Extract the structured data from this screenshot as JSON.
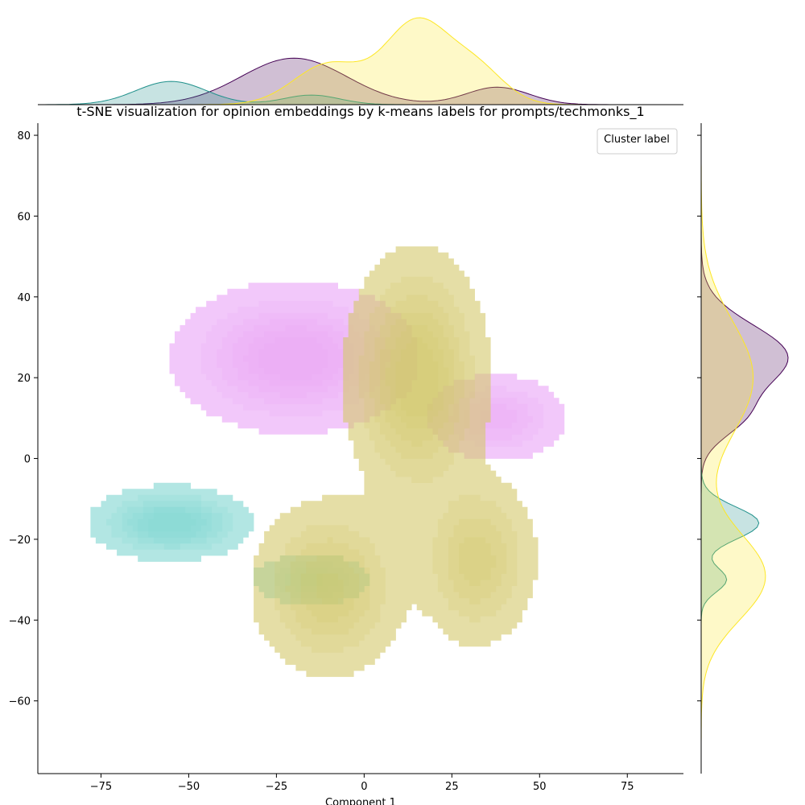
{
  "chart_data": {
    "type": "kde_joint",
    "title": "t-SNE visualization for opinion embeddings by k-means labels for prompts/techmonks_1",
    "xlabel": "Component 1",
    "ylabel": "",
    "xlim": [
      -93,
      91
    ],
    "ylim": [
      -78,
      83
    ],
    "x_ticks": [
      -75,
      -50,
      -25,
      0,
      25,
      50,
      75
    ],
    "y_ticks": [
      -60,
      -40,
      -20,
      0,
      20,
      40,
      60,
      80
    ],
    "x_tick_labels": [
      "−75",
      "−50",
      "−25",
      "0",
      "25",
      "50",
      "75"
    ],
    "y_tick_labels": [
      "−60",
      "−40",
      "−20",
      "0",
      "20",
      "40",
      "60",
      "80"
    ],
    "legend": {
      "title": "Cluster label",
      "placement": "top-right",
      "entries": []
    },
    "grid": false,
    "series": [
      {
        "color": "#e9a3f7",
        "marginal_color": "#440154",
        "components": [
          {
            "center": [
              -20,
              25
            ],
            "spread": [
              15,
              8
            ],
            "weight": 1.0
          },
          {
            "center": [
              38,
              10
            ],
            "spread": [
              9,
              5
            ],
            "weight": 0.6
          }
        ]
      },
      {
        "color": "#7fd6d0",
        "marginal_color": "#21918c",
        "components": [
          {
            "center": [
              -55,
              -16
            ],
            "spread": [
              10,
              4
            ],
            "weight": 1.0
          },
          {
            "center": [
              -15,
              -30
            ],
            "spread": [
              8,
              3
            ],
            "weight": 0.55
          }
        ]
      },
      {
        "color": "#d4c86a",
        "marginal_color": "#fde725",
        "components": [
          {
            "center": [
              15,
              20
            ],
            "spread": [
              9,
              14
            ],
            "weight": 1.0
          },
          {
            "center": [
              -10,
              -32
            ],
            "spread": [
              10,
              10
            ],
            "weight": 0.7
          },
          {
            "center": [
              32,
              -25
            ],
            "spread": [
              8,
              10
            ],
            "weight": 0.6
          }
        ]
      }
    ]
  }
}
